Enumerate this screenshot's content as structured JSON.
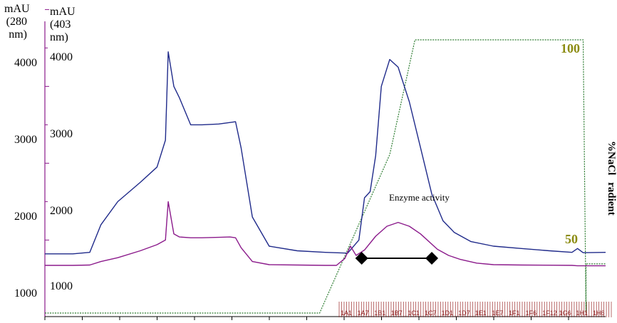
{
  "chart_data": {
    "type": "line",
    "title": "",
    "y_axes": [
      {
        "label_lines": [
          "mAU",
          "(280",
          "nm)"
        ],
        "ticks": [
          "4000",
          "3000",
          "2000",
          "1000"
        ],
        "color": "#8b1a8b"
      },
      {
        "label_lines": [
          "mAU",
          "(403",
          "nm)"
        ],
        "ticks": [
          "4000",
          "3000",
          "2000",
          "1000"
        ],
        "color": "#000000"
      }
    ],
    "right_axis": {
      "label": "%NaCl",
      "label2": "radient",
      "ticks": [
        "100",
        "50"
      ],
      "tick_color": "#8b8b10"
    },
    "series": [
      {
        "color": "#1f2a8a",
        "x": [
          0,
          5,
          8,
          10,
          13,
          17,
          20,
          21.5,
          22,
          23,
          24,
          26,
          28,
          31,
          33,
          34,
          35,
          37,
          40,
          45,
          50,
          54,
          56,
          57,
          58,
          59,
          60,
          61.5,
          63,
          65,
          67,
          69,
          71,
          73,
          76,
          80,
          85,
          90,
          94,
          95,
          96,
          100
        ],
        "y": [
          1520,
          1520,
          1540,
          1900,
          2200,
          2450,
          2650,
          3000,
          4150,
          3700,
          3550,
          3200,
          3200,
          3210,
          3230,
          3240,
          2900,
          2000,
          1620,
          1560,
          1540,
          1530,
          1700,
          2250,
          2330,
          2800,
          3700,
          4050,
          3950,
          3500,
          2900,
          2300,
          1950,
          1800,
          1680,
          1620,
          1590,
          1560,
          1540,
          1590,
          1535,
          1540
        ]
      },
      {
        "color": "#8b1a8b",
        "x": [
          0,
          5,
          8,
          10,
          13,
          17,
          20,
          21.5,
          22,
          23,
          24,
          26,
          28,
          31,
          33,
          34,
          35,
          37,
          40,
          45,
          50,
          52,
          53.5,
          54.5,
          55.5,
          57,
          59,
          61,
          63,
          65,
          67,
          70,
          72,
          74,
          77,
          80,
          85,
          94,
          95,
          100
        ],
        "y": [
          1370,
          1370,
          1375,
          1420,
          1470,
          1560,
          1640,
          1700,
          2200,
          1780,
          1740,
          1730,
          1730,
          1735,
          1740,
          1730,
          1600,
          1420,
          1380,
          1375,
          1370,
          1370,
          1460,
          1620,
          1500,
          1570,
          1750,
          1880,
          1930,
          1880,
          1780,
          1580,
          1500,
          1450,
          1400,
          1380,
          1375,
          1370,
          1365,
          1365
        ]
      }
    ],
    "gradient_percent": {
      "color": "#2e7d32",
      "x": [
        0,
        49,
        61.5,
        66,
        96,
        96.5,
        96.5,
        100
      ],
      "y": [
        0,
        0,
        58,
        100,
        100,
        0,
        18,
        18
      ]
    },
    "annotation": {
      "text": "Enzyme activity",
      "range": [
        56.5,
        69
      ]
    },
    "fractions": [
      "1A1",
      "1A7",
      "1B1",
      "1B7",
      "1C1",
      "1C7",
      "1D1",
      "1D7",
      "1E1",
      "1E7",
      "1F1",
      "1F6",
      "1F12",
      "1G6",
      "1H1",
      "1H6"
    ]
  }
}
